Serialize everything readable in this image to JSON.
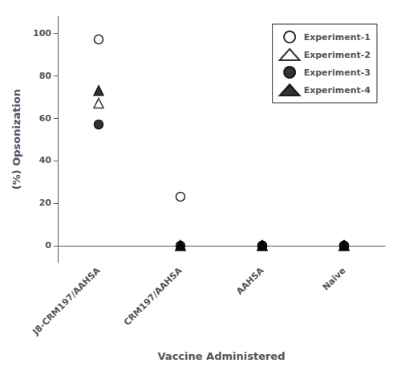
{
  "chart_data": {
    "type": "scatter",
    "xlabel": "Vaccine Administered",
    "ylabel": "(%) Opsonization",
    "categories": [
      "J8-CRM197/AAHSA",
      "CRM197/AAHSA",
      "AAHSA",
      "Naive"
    ],
    "series": [
      {
        "name": "Experiment-1",
        "color": "black",
        "marker": "open_circle",
        "values": [
          97,
          23,
          0,
          0
        ]
      },
      {
        "name": "Experiment-2",
        "color": "black",
        "marker": "open_triangle",
        "values": [
          67,
          0,
          0,
          0
        ]
      },
      {
        "name": "Experiment-3",
        "color": "black",
        "marker": "filled_circle",
        "values": [
          57,
          0,
          0,
          0
        ]
      },
      {
        "name": "Experiment-4",
        "color": "black",
        "marker": "filled_triangle",
        "values": [
          73,
          0,
          0,
          0
        ]
      }
    ],
    "ylim": [
      -8,
      108
    ],
    "yticks": [
      0,
      20,
      40,
      60,
      80,
      100
    ],
    "grid": false,
    "legend": "upper right"
  }
}
